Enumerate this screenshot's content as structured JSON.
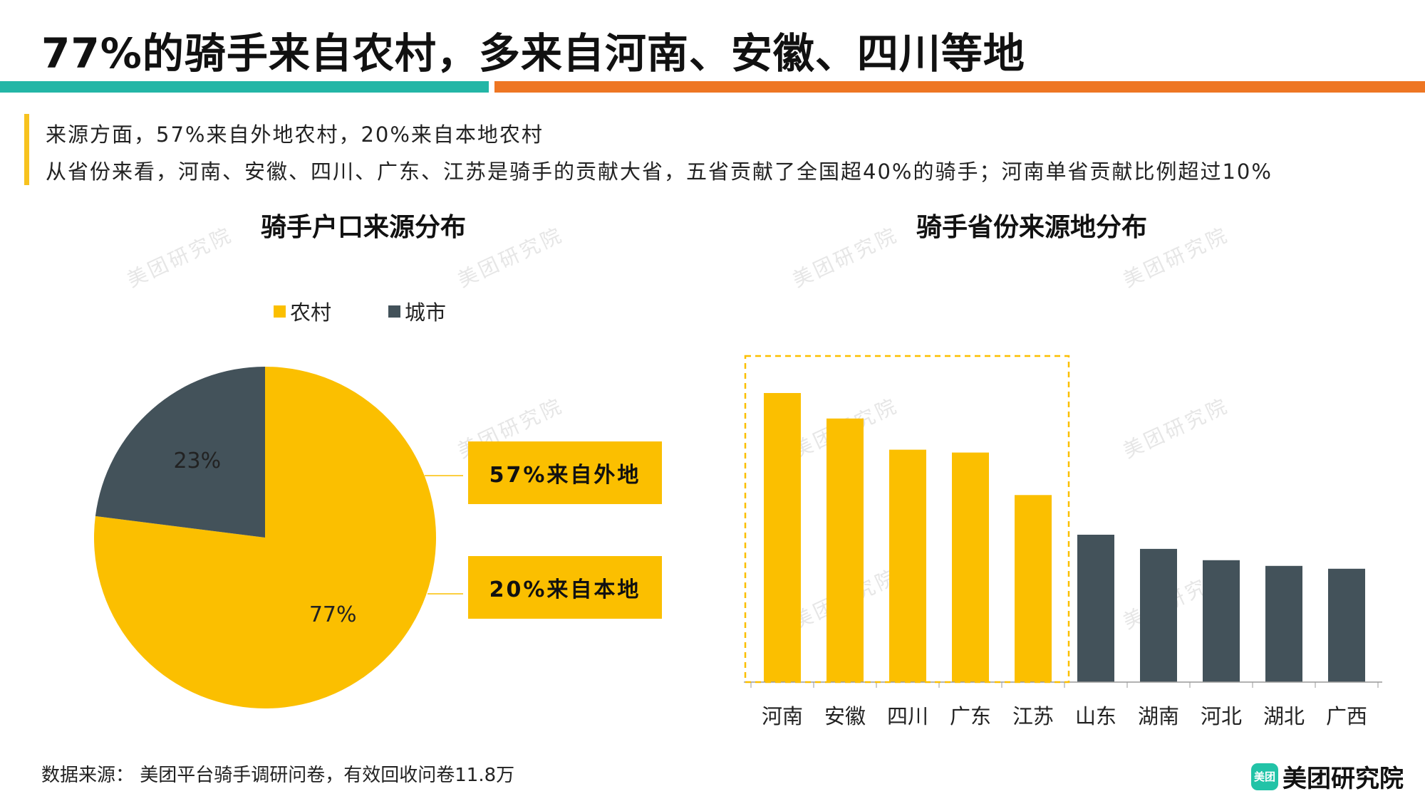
{
  "title": "77%的骑手来自农村，多来自河南、安徽、四川等地",
  "notes": [
    "来源方面，57%来自外地农村，20%来自本地农村",
    "从省份来看，河南、安徽、四川、广东、江苏是骑手的贡献大省，五省贡献了全国超40%的骑手；河南单省贡献比例超过10%"
  ],
  "watermark": "美团研究院",
  "footer": {
    "source": "数据来源： 美团平台骑手调研问卷，有效回收问卷11.8万",
    "brand": "美团研究院",
    "brand_icon_text": "美团"
  },
  "colors": {
    "yellow": "#fbbf00",
    "dark": "#43525a",
    "teal": "#23b6a6",
    "orange": "#ee7623"
  },
  "chart_data": [
    {
      "type": "pie",
      "title": "骑手户口来源分布",
      "legend_position": "top",
      "slices": [
        {
          "name": "农村",
          "value": 77,
          "label": "77%",
          "color": "#fbbf00"
        },
        {
          "name": "城市",
          "value": 23,
          "label": "23%",
          "color": "#43525a"
        }
      ],
      "annotations": [
        "57%来自外地",
        "20%来自本地"
      ]
    },
    {
      "type": "bar",
      "title": "骑手省份来源地分布",
      "categories": [
        "河南",
        "安徽",
        "四川",
        "广东",
        "江苏",
        "山东",
        "湖南",
        "河北",
        "湖北",
        "广西"
      ],
      "values": [
        10.2,
        9.3,
        8.2,
        8.1,
        6.6,
        5.2,
        4.7,
        4.3,
        4.1,
        4.0
      ],
      "highlighted": [
        "河南",
        "安徽",
        "四川",
        "广东",
        "江苏"
      ],
      "grid": false
    }
  ]
}
